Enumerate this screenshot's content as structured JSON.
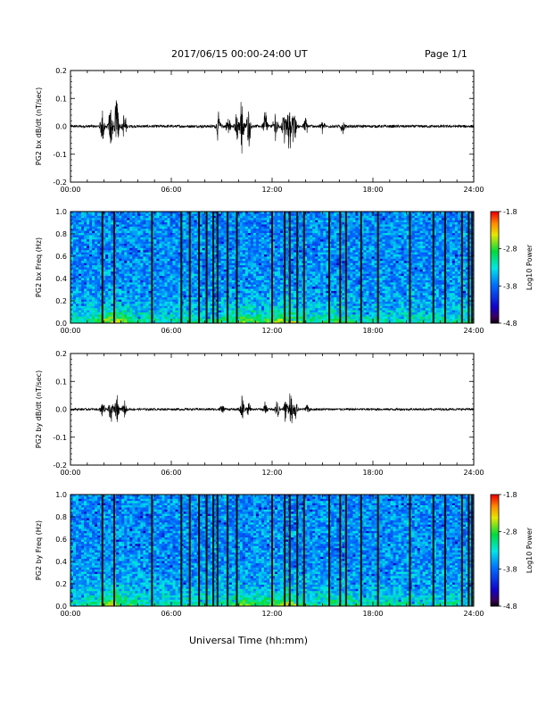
{
  "header": {
    "title": "2017/06/15  00:00-24:00 UT",
    "page": "Page 1/1"
  },
  "xlabel": "Universal Time (hh:mm)",
  "time_ticks": [
    "00:00",
    "06:00",
    "12:00",
    "18:00",
    "24:00"
  ],
  "chart_data": [
    {
      "type": "line",
      "title": "",
      "ylabel": "PG2 bx dB/dt (nT/sec)",
      "xlim": [
        0,
        24
      ],
      "ylim": [
        -0.2,
        0.2
      ],
      "yticks": [
        "0.2",
        "0.1",
        "0.0",
        "-0.1",
        "-0.2"
      ],
      "x_unit": "hours UT",
      "series": [
        {
          "bursts": [
            {
              "t": 1.9,
              "amp": 0.09
            },
            {
              "t": 2.4,
              "amp": 0.12
            },
            {
              "t": 2.75,
              "amp": 0.17
            },
            {
              "t": 3.2,
              "amp": 0.06
            },
            {
              "t": 8.8,
              "amp": 0.06
            },
            {
              "t": 9.4,
              "amp": 0.06
            },
            {
              "t": 9.9,
              "amp": 0.06
            },
            {
              "t": 10.2,
              "amp": 0.12
            },
            {
              "t": 10.6,
              "amp": 0.09
            },
            {
              "t": 11.6,
              "amp": 0.09
            },
            {
              "t": 12.2,
              "amp": 0.08
            },
            {
              "t": 12.7,
              "amp": 0.1
            },
            {
              "t": 13.0,
              "amp": 0.13
            },
            {
              "t": 13.3,
              "amp": 0.09
            },
            {
              "t": 14.0,
              "amp": 0.04
            },
            {
              "t": 15.0,
              "amp": 0.03
            },
            {
              "t": 16.2,
              "amp": 0.03
            }
          ],
          "baseline_amp": 0.005
        }
      ]
    },
    {
      "type": "heatmap",
      "ylabel": "PG2 bx Freq (Hz)",
      "xlim": [
        0,
        24
      ],
      "ylim": [
        0.0,
        1.0
      ],
      "yticks": [
        "1.0",
        "0.8",
        "0.6",
        "0.4",
        "0.2",
        "0.0"
      ],
      "colorbar": {
        "label": "Log10 Power",
        "ticks": [
          "-1.8",
          "-2.8",
          "-3.8",
          "-4.8"
        ],
        "range": [
          -4.8,
          -1.8
        ]
      },
      "dark_lines_t": [
        1.9,
        2.6,
        4.85,
        6.6,
        7.1,
        7.65,
        8.1,
        8.5,
        8.75,
        9.35,
        9.9,
        12.0,
        12.75,
        13.05,
        13.5,
        13.9,
        15.4,
        16.05,
        16.4,
        17.3,
        18.3,
        20.2,
        21.6,
        22.3,
        23.3,
        23.7,
        23.9
      ]
    },
    {
      "type": "line",
      "ylabel": "PG2 by dB/dt (nT/sec)",
      "xlim": [
        0,
        24
      ],
      "ylim": [
        -0.2,
        0.2
      ],
      "yticks": [
        "0.2",
        "0.1",
        "0.0",
        "-0.1",
        "-0.2"
      ],
      "x_unit": "hours UT",
      "series": [
        {
          "bursts": [
            {
              "t": 1.9,
              "amp": 0.04
            },
            {
              "t": 2.4,
              "amp": 0.06
            },
            {
              "t": 2.75,
              "amp": 0.08
            },
            {
              "t": 3.2,
              "amp": 0.03
            },
            {
              "t": 9.0,
              "amp": 0.02
            },
            {
              "t": 10.2,
              "amp": 0.05
            },
            {
              "t": 10.6,
              "amp": 0.03
            },
            {
              "t": 11.6,
              "amp": 0.03
            },
            {
              "t": 12.3,
              "amp": 0.04
            },
            {
              "t": 12.8,
              "amp": 0.06
            },
            {
              "t": 13.1,
              "amp": 0.08
            },
            {
              "t": 13.4,
              "amp": 0.04
            },
            {
              "t": 14.1,
              "amp": 0.02
            }
          ],
          "baseline_amp": 0.004
        }
      ]
    },
    {
      "type": "heatmap",
      "ylabel": "PG2 by Freq (Hz)",
      "xlim": [
        0,
        24
      ],
      "ylim": [
        0.0,
        1.0
      ],
      "yticks": [
        "1.0",
        "0.8",
        "0.6",
        "0.4",
        "0.2",
        "0.0"
      ],
      "colorbar": {
        "label": "Log10 Power",
        "ticks": [
          "-1.8",
          "-2.8",
          "-3.8",
          "-4.8"
        ],
        "range": [
          -4.8,
          -1.8
        ]
      },
      "dark_lines_t": [
        1.9,
        2.6,
        4.85,
        6.6,
        7.1,
        7.65,
        8.1,
        8.5,
        8.75,
        9.35,
        9.9,
        12.0,
        12.75,
        13.05,
        13.5,
        13.9,
        15.4,
        16.05,
        16.4,
        17.3,
        18.3,
        20.2,
        21.6,
        22.3,
        23.3,
        23.7,
        23.9
      ]
    }
  ],
  "colors": {
    "axis": "#000000",
    "trace": "#000000"
  }
}
